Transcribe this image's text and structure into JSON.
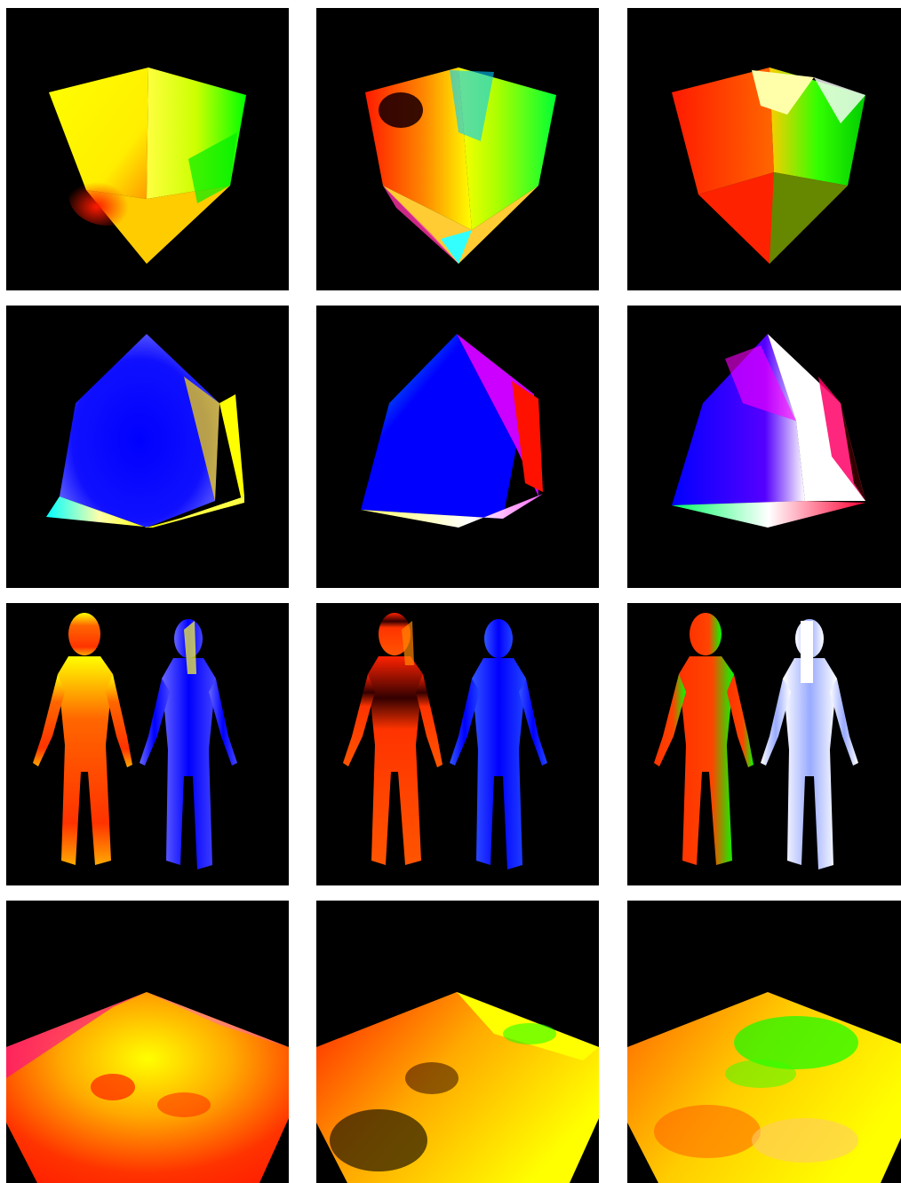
{
  "grid": {
    "rows": 4,
    "columns": 3,
    "background_color": "#ffffff",
    "panel_background": "#000000"
  },
  "panels": [
    {
      "row": 0,
      "col": 0,
      "subject": "cube",
      "palette": [
        "#ffff00",
        "#ff1a00",
        "#00ff00",
        "#ff6600"
      ]
    },
    {
      "row": 0,
      "col": 1,
      "subject": "cube",
      "palette": [
        "#ff1a00",
        "#ffff00",
        "#00ff33",
        "#00ffff"
      ]
    },
    {
      "row": 0,
      "col": 2,
      "subject": "cube",
      "palette": [
        "#ff1a00",
        "#ffff99",
        "#00ff00",
        "#ff0033"
      ]
    },
    {
      "row": 1,
      "col": 0,
      "subject": "cube",
      "palette": [
        "#0000ff",
        "#00ffff",
        "#ffff66",
        "#ffff00"
      ]
    },
    {
      "row": 1,
      "col": 1,
      "subject": "cube",
      "palette": [
        "#0000ff",
        "#00ffcc",
        "#ff66ff",
        "#ff0000"
      ]
    },
    {
      "row": 1,
      "col": 2,
      "subject": "cube",
      "palette": [
        "#0000ff",
        "#ffffff",
        "#ff00ff",
        "#00ff66"
      ]
    },
    {
      "row": 2,
      "col": 0,
      "subject": "two-figures",
      "palette": [
        "#ff3300",
        "#ffff00",
        "#0000ff",
        "#3333ff"
      ]
    },
    {
      "row": 2,
      "col": 1,
      "subject": "two-figures",
      "palette": [
        "#ff2200",
        "#330000",
        "#0000ff",
        "#3355ff"
      ]
    },
    {
      "row": 2,
      "col": 2,
      "subject": "two-figures",
      "palette": [
        "#ff3300",
        "#00ff00",
        "#aabbff",
        "#ffffff"
      ]
    },
    {
      "row": 3,
      "col": 0,
      "subject": "terrain",
      "palette": [
        "#ff3300",
        "#ffff00",
        "#ff0099",
        "#ffaa00"
      ]
    },
    {
      "row": 3,
      "col": 1,
      "subject": "terrain",
      "palette": [
        "#ff2200",
        "#ffff00",
        "#332200",
        "#00ff00"
      ]
    },
    {
      "row": 3,
      "col": 2,
      "subject": "terrain",
      "palette": [
        "#ff6600",
        "#00ff00",
        "#ffff00",
        "#ffcc66"
      ]
    }
  ]
}
